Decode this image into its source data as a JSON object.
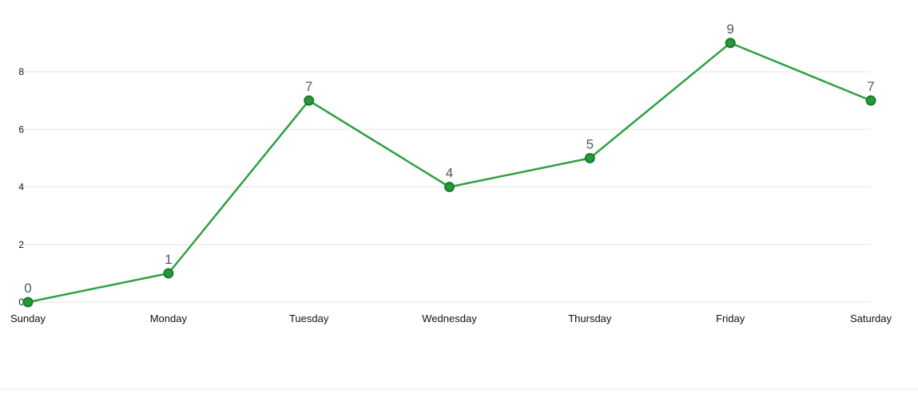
{
  "chart_data": {
    "type": "line",
    "title": "",
    "xlabel": "",
    "ylabel": "",
    "categories": [
      "Sunday",
      "Monday",
      "Tuesday",
      "Wednesday",
      "Thursday",
      "Friday",
      "Saturday"
    ],
    "series": [
      {
        "values": [
          0,
          1,
          7,
          4,
          5,
          9,
          7
        ]
      }
    ],
    "ylim": [
      0,
      8
    ],
    "yticks": [
      0,
      2,
      4,
      6,
      8
    ],
    "grid": true,
    "data_labels": true,
    "colors": {
      "line": "#2ea043",
      "point_fill": "#239a3b",
      "point_stroke": "#1d7a30"
    }
  }
}
